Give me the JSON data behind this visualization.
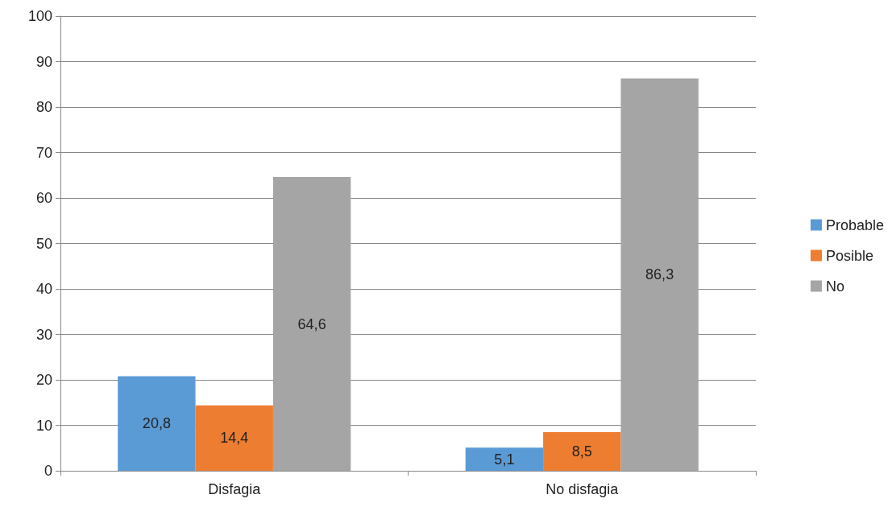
{
  "chart_data": {
    "type": "bar",
    "categories": [
      "Disfagia",
      "No disfagia"
    ],
    "series": [
      {
        "name": "Probable",
        "color": "#5b9bd5",
        "values": [
          20.8,
          5.1
        ],
        "value_labels": [
          "20,8",
          "5,1"
        ]
      },
      {
        "name": "Posible",
        "color": "#ed7d31",
        "values": [
          14.4,
          8.5
        ],
        "value_labels": [
          "14,4",
          "8,5"
        ]
      },
      {
        "name": "No",
        "color": "#a5a5a5",
        "values": [
          64.6,
          86.3
        ],
        "value_labels": [
          "64,6",
          "86,3"
        ]
      }
    ],
    "ylim": [
      0,
      100
    ],
    "yticks": [
      0,
      10,
      20,
      30,
      40,
      50,
      60,
      70,
      80,
      90,
      100
    ],
    "grid": "y",
    "legend": "right"
  }
}
